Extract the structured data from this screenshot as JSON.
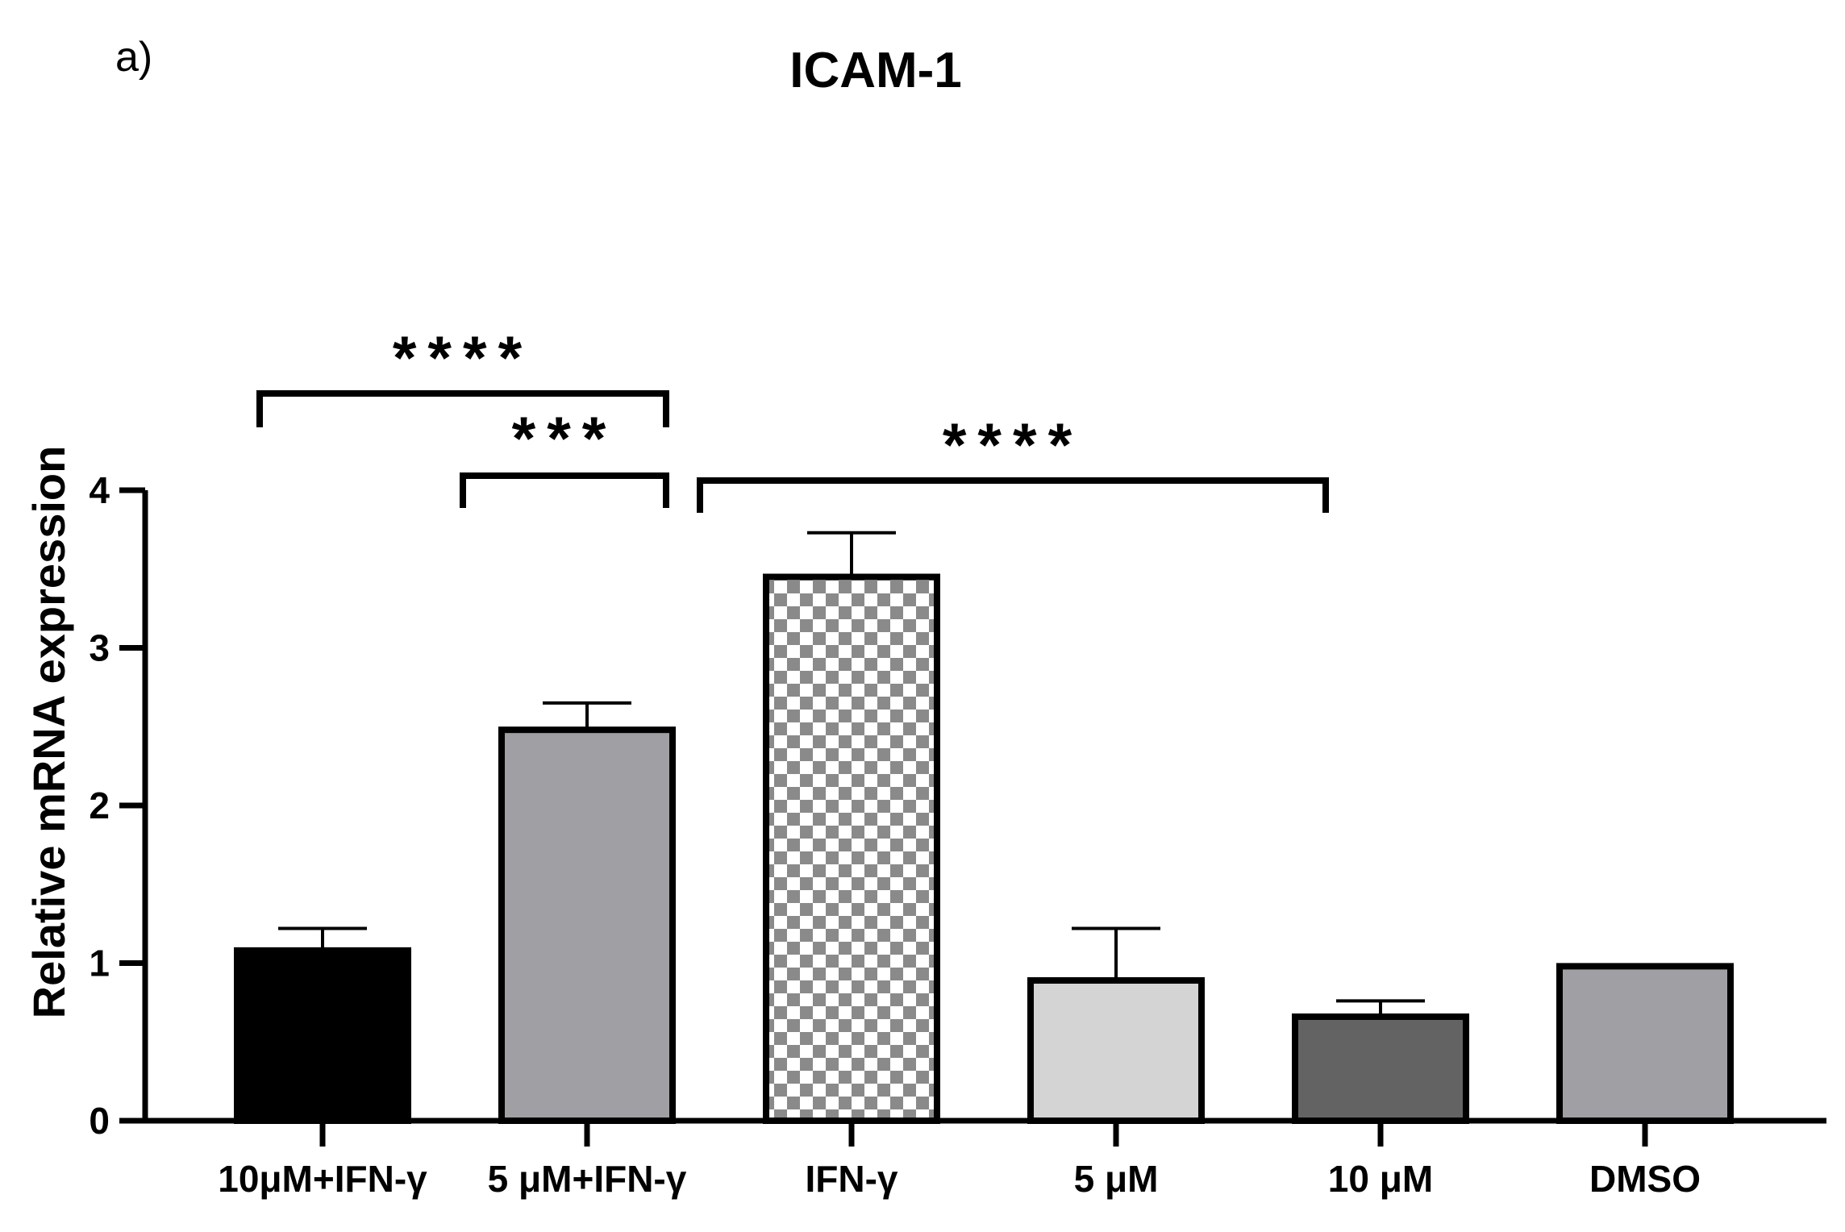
{
  "panel_label": "a)",
  "chart_data": {
    "type": "bar",
    "title": "ICAM-1",
    "xlabel": "",
    "ylabel": "Relative mRNA expression",
    "ylim": [
      0,
      4
    ],
    "yticks": [
      "0",
      "1",
      "2",
      "3",
      "4"
    ],
    "categories": [
      "10μM+IFN-γ",
      "5 μM+IFN-γ",
      "IFN-γ",
      "5 μM",
      "10 μM",
      "DMSO"
    ],
    "values": [
      1.08,
      2.48,
      3.45,
      0.89,
      0.66,
      0.98
    ],
    "errors": [
      0.14,
      0.17,
      0.28,
      0.33,
      0.1,
      0
    ],
    "fills": [
      "#000000",
      "#a0a0a4",
      "checker",
      "#d4d4d4",
      "#636363",
      "#a0a0a4"
    ],
    "grid": false,
    "significance": [
      {
        "from": 0,
        "to": 1,
        "label": "****"
      },
      {
        "from": 1,
        "to": 1,
        "label": "***"
      },
      {
        "from": 2,
        "to": 4,
        "label": "****"
      }
    ]
  }
}
